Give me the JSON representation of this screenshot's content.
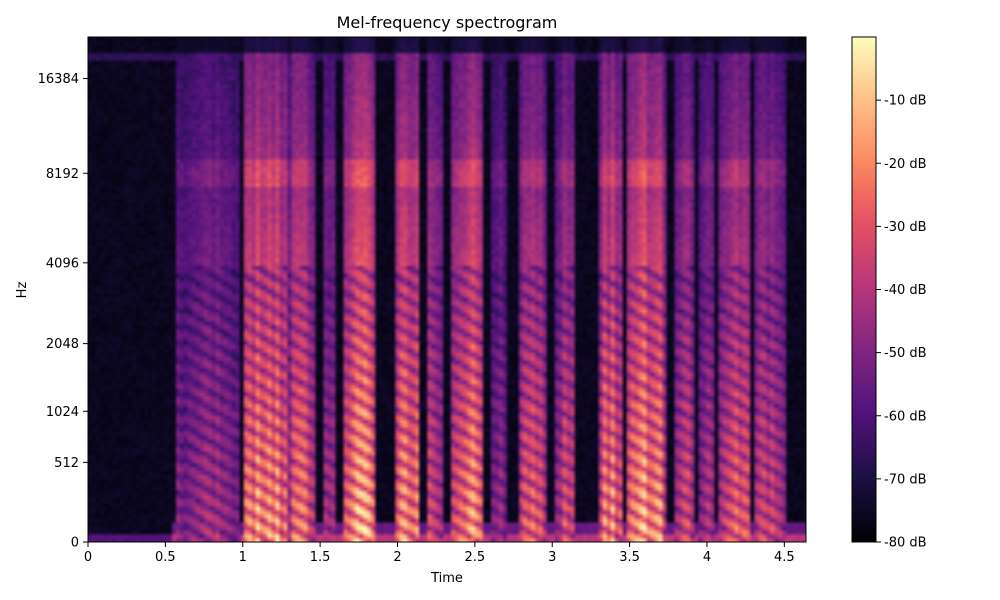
{
  "chart_data": {
    "type": "heatmap",
    "title": "Mel-frequency spectrogram",
    "xlabel": "Time",
    "ylabel": "Hz",
    "xlim": [
      0,
      4.64
    ],
    "x_ticks": [
      {
        "value": 0,
        "label": "0"
      },
      {
        "value": 0.5,
        "label": "0.5"
      },
      {
        "value": 1,
        "label": "1"
      },
      {
        "value": 1.5,
        "label": "1.5"
      },
      {
        "value": 2,
        "label": "2"
      },
      {
        "value": 2.5,
        "label": "2.5"
      },
      {
        "value": 3,
        "label": "3"
      },
      {
        "value": 3.5,
        "label": "3.5"
      },
      {
        "value": 4,
        "label": "4"
      },
      {
        "value": 4.5,
        "label": "4.5"
      }
    ],
    "y_scale": "mel",
    "ylim": [
      0,
      22050
    ],
    "y_ticks": [
      {
        "value": 0,
        "label": "0"
      },
      {
        "value": 512,
        "label": "512"
      },
      {
        "value": 1024,
        "label": "1024"
      },
      {
        "value": 2048,
        "label": "2048"
      },
      {
        "value": 4096,
        "label": "4096"
      },
      {
        "value": 8192,
        "label": "8192"
      },
      {
        "value": 16384,
        "label": "16384"
      }
    ],
    "colorbar": {
      "colormap": "magma",
      "range": [
        -80,
        0
      ],
      "ticks": [
        {
          "value": -10,
          "label": "-10 dB"
        },
        {
          "value": -20,
          "label": "-20 dB"
        },
        {
          "value": -30,
          "label": "-30 dB"
        },
        {
          "value": -40,
          "label": "-40 dB"
        },
        {
          "value": -50,
          "label": "-50 dB"
        },
        {
          "value": -60,
          "label": "-60 dB"
        },
        {
          "value": -70,
          "label": "-70 dB"
        },
        {
          "value": -80,
          "label": "-80 dB"
        }
      ]
    },
    "segments": [
      {
        "start": 0.57,
        "end": 0.62,
        "level": 0.45
      },
      {
        "start": 0.62,
        "end": 0.98,
        "level": 0.55
      },
      {
        "start": 1.0,
        "end": 1.3,
        "level": 1.0
      },
      {
        "start": 1.3,
        "end": 1.46,
        "level": 0.85
      },
      {
        "start": 1.52,
        "end": 1.6,
        "level": 0.6
      },
      {
        "start": 1.65,
        "end": 1.85,
        "level": 1.0
      },
      {
        "start": 1.98,
        "end": 2.15,
        "level": 0.95
      },
      {
        "start": 2.18,
        "end": 2.3,
        "level": 0.7
      },
      {
        "start": 2.35,
        "end": 2.56,
        "level": 0.95
      },
      {
        "start": 2.6,
        "end": 2.7,
        "level": 0.5
      },
      {
        "start": 2.78,
        "end": 2.96,
        "level": 0.8
      },
      {
        "start": 3.02,
        "end": 3.15,
        "level": 0.7
      },
      {
        "start": 3.3,
        "end": 3.45,
        "level": 0.9
      },
      {
        "start": 3.48,
        "end": 3.73,
        "level": 1.0
      },
      {
        "start": 3.8,
        "end": 3.92,
        "level": 0.75
      },
      {
        "start": 3.95,
        "end": 4.05,
        "level": 0.6
      },
      {
        "start": 4.08,
        "end": 4.28,
        "level": 0.85
      },
      {
        "start": 4.3,
        "end": 4.52,
        "level": 0.65
      }
    ]
  }
}
